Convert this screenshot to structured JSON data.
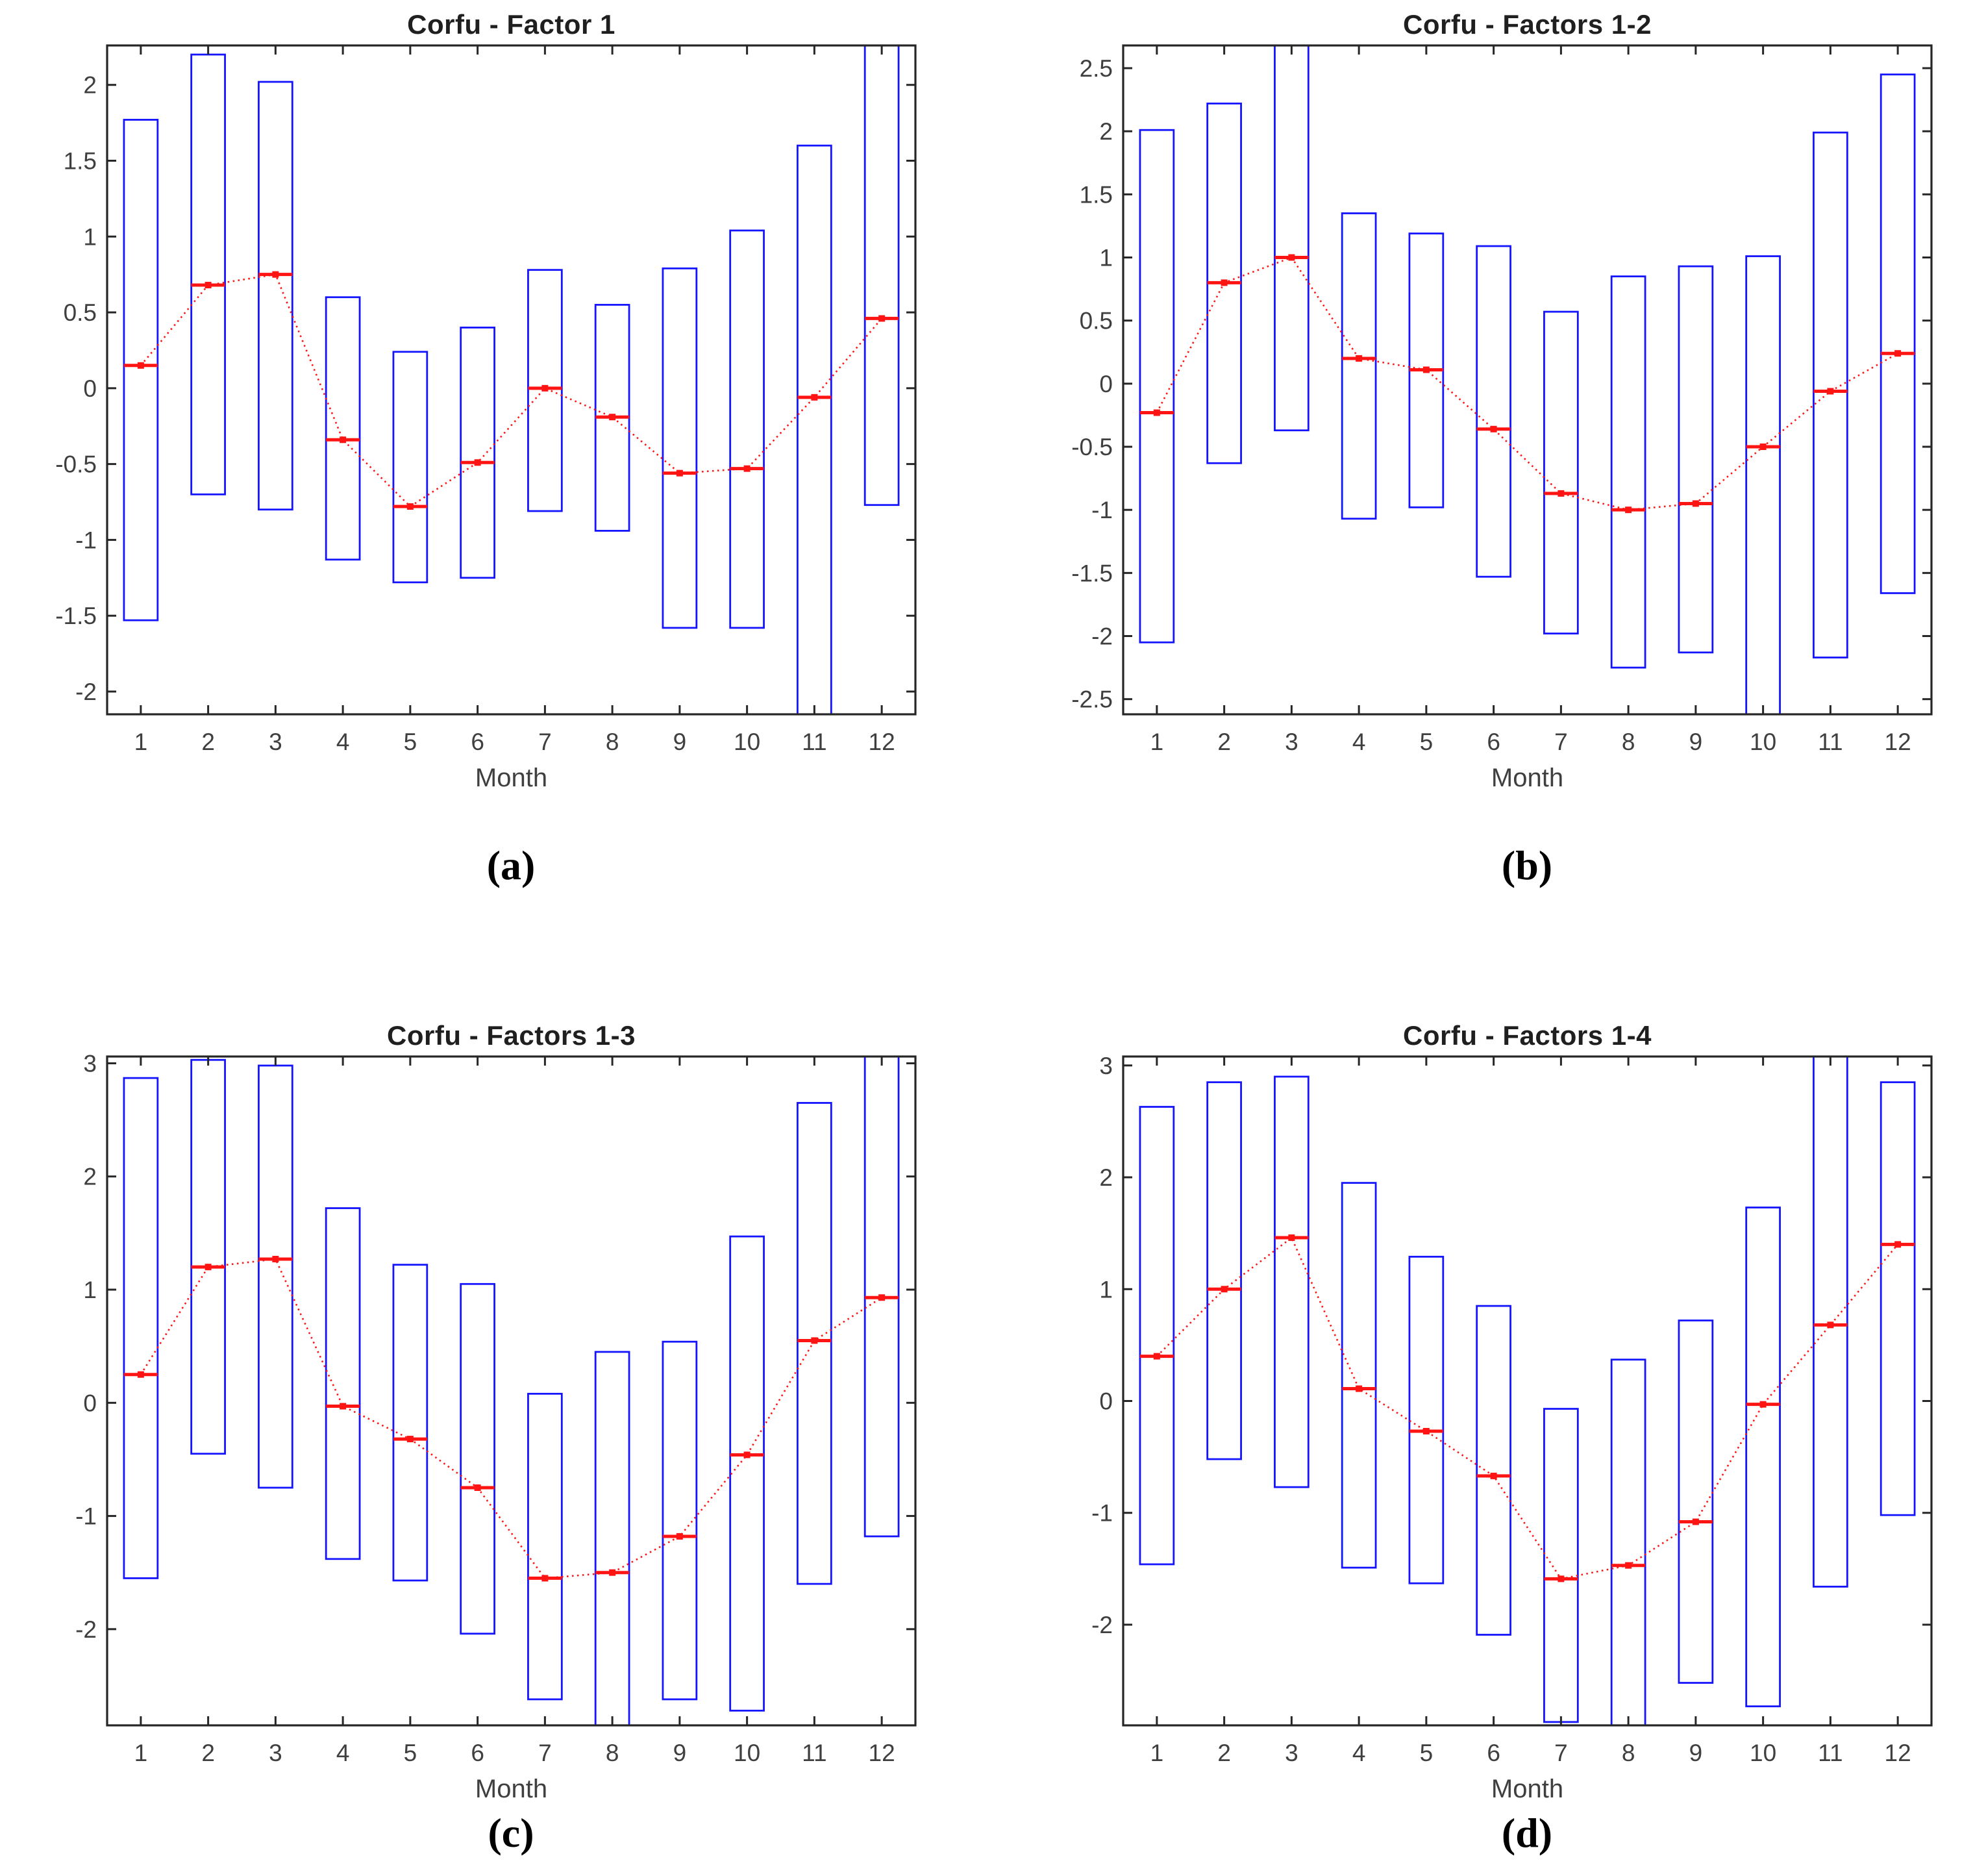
{
  "colors": {
    "background": "#ffffff",
    "box_blue": "#1414ff",
    "line_red": "#ff1414",
    "axis": "#262626",
    "tick_text": "#3f3f3f",
    "title_text": "#1f1f1f"
  },
  "chart_data": [
    {
      "type": "bar",
      "title": "Corfu - Factor 1",
      "xlabel": "Month",
      "panel_label": "(a)",
      "months": [
        1,
        2,
        3,
        4,
        5,
        6,
        7,
        8,
        9,
        10,
        11,
        12
      ],
      "yticks": [
        -2,
        -1.5,
        -1,
        -0.5,
        0,
        0.5,
        1,
        1.5,
        2
      ],
      "ylim": [
        -2.15,
        2.26
      ],
      "series": [
        {
          "name": "range-low",
          "values": [
            -1.53,
            -0.7,
            -0.8,
            -1.13,
            -1.28,
            -1.25,
            -0.81,
            -0.94,
            -1.58,
            -1.58,
            -2.3,
            -0.77
          ]
        },
        {
          "name": "range-high",
          "values": [
            1.77,
            2.2,
            2.02,
            0.6,
            0.24,
            0.4,
            0.78,
            0.55,
            0.79,
            1.04,
            1.6,
            2.4
          ]
        },
        {
          "name": "mean",
          "values": [
            0.15,
            0.68,
            0.75,
            -0.34,
            -0.78,
            -0.49,
            0.0,
            -0.19,
            -0.56,
            -0.53,
            -0.06,
            0.46
          ]
        }
      ],
      "legend": "none",
      "grid": "off"
    },
    {
      "type": "bar",
      "title": "Corfu - Factors 1-2",
      "xlabel": "Month",
      "panel_label": "(b)",
      "months": [
        1,
        2,
        3,
        4,
        5,
        6,
        7,
        8,
        9,
        10,
        11,
        12
      ],
      "yticks": [
        -2.5,
        -2,
        -1.5,
        -1,
        -0.5,
        0,
        0.5,
        1,
        1.5,
        2,
        2.5
      ],
      "ylim": [
        -2.62,
        2.68
      ],
      "series": [
        {
          "name": "range-low",
          "values": [
            -2.05,
            -0.63,
            -0.37,
            -1.07,
            -0.98,
            -1.53,
            -1.98,
            -2.25,
            -2.13,
            -2.8,
            -2.17,
            -1.66
          ]
        },
        {
          "name": "range-high",
          "values": [
            2.01,
            2.22,
            2.85,
            1.35,
            1.19,
            1.09,
            0.57,
            0.85,
            0.93,
            1.01,
            1.99,
            2.45
          ]
        },
        {
          "name": "mean",
          "values": [
            -0.23,
            0.8,
            1.0,
            0.2,
            0.11,
            -0.36,
            -0.87,
            -1.0,
            -0.95,
            -0.5,
            -0.06,
            0.24
          ]
        }
      ],
      "legend": "none",
      "grid": "off"
    },
    {
      "type": "bar",
      "title": "Corfu - Factors 1-3",
      "xlabel": "Month",
      "panel_label": "(c)",
      "months": [
        1,
        2,
        3,
        4,
        5,
        6,
        7,
        8,
        9,
        10,
        11,
        12
      ],
      "yticks": [
        -2,
        -1,
        0,
        1,
        2,
        3
      ],
      "ylim": [
        -2.85,
        3.06
      ],
      "series": [
        {
          "name": "range-low",
          "values": [
            -1.55,
            -0.45,
            -0.75,
            -1.38,
            -1.57,
            -2.04,
            -2.62,
            -2.95,
            -2.62,
            -2.72,
            -1.6,
            -1.18
          ]
        },
        {
          "name": "range-high",
          "values": [
            2.87,
            3.03,
            2.98,
            1.72,
            1.22,
            1.05,
            0.08,
            0.45,
            0.54,
            1.47,
            2.65,
            3.2
          ]
        },
        {
          "name": "mean",
          "values": [
            0.25,
            1.2,
            1.27,
            -0.03,
            -0.32,
            -0.75,
            -1.55,
            -1.5,
            -1.18,
            -0.46,
            0.55,
            0.93
          ]
        }
      ],
      "legend": "none",
      "grid": "off"
    },
    {
      "type": "bar",
      "title": "Corfu - Factors 1-4",
      "xlabel": "Month",
      "panel_label": "(d)",
      "months": [
        1,
        2,
        3,
        4,
        5,
        6,
        7,
        8,
        9,
        10,
        11,
        12
      ],
      "yticks": [
        -2,
        -1,
        0,
        1,
        2,
        3
      ],
      "ylim": [
        -2.9,
        3.08
      ],
      "series": [
        {
          "name": "range-low",
          "values": [
            -1.46,
            -0.52,
            -0.77,
            -1.49,
            -1.63,
            -2.09,
            -2.87,
            -3.1,
            -2.52,
            -2.73,
            -1.66,
            -1.02
          ]
        },
        {
          "name": "range-high",
          "values": [
            2.63,
            2.85,
            2.9,
            1.95,
            1.29,
            0.85,
            -0.07,
            0.37,
            0.72,
            1.73,
            3.25,
            2.85
          ]
        },
        {
          "name": "mean",
          "values": [
            0.4,
            1.0,
            1.46,
            0.11,
            -0.27,
            -0.67,
            -1.59,
            -1.47,
            -1.08,
            -0.03,
            0.68,
            1.4
          ]
        }
      ],
      "legend": "none",
      "grid": "off"
    }
  ]
}
